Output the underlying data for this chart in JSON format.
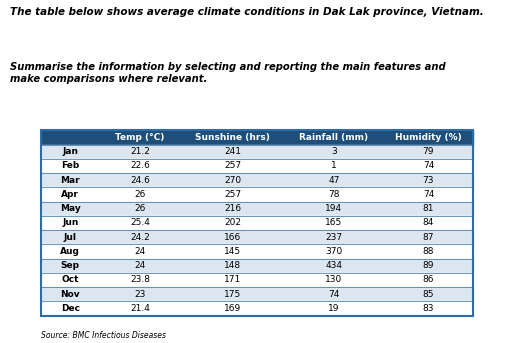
{
  "title_line1": "The table below shows average climate conditions in Dak Lak province, Vietnam.",
  "title_line2": "Summarise the information by selecting and reporting the main features and\nmake comparisons where relevant.",
  "source": "Source: BMC Infectious Diseases",
  "headers": [
    "",
    "Temp (°C)",
    "Sunshine (hrs)",
    "Rainfall (mm)",
    "Humidity (%)"
  ],
  "months": [
    "Jan",
    "Feb",
    "Mar",
    "Apr",
    "May",
    "Jun",
    "Jul",
    "Aug",
    "Sep",
    "Oct",
    "Nov",
    "Dec"
  ],
  "temp": [
    21.2,
    22.6,
    24.6,
    26,
    26,
    25.4,
    24.2,
    24,
    24,
    23.8,
    23,
    21.4
  ],
  "sunshine": [
    241,
    257,
    270,
    257,
    216,
    202,
    166,
    145,
    148,
    171,
    175,
    169
  ],
  "rainfall": [
    3,
    1,
    47,
    78,
    194,
    165,
    237,
    370,
    434,
    130,
    74,
    19
  ],
  "humidity": [
    79,
    74,
    73,
    74,
    81,
    84,
    87,
    88,
    89,
    86,
    85,
    83
  ],
  "header_bg": "#1f4e79",
  "header_fg": "#ffffff",
  "row_bg_even": "#dce6f1",
  "row_bg_odd": "#ffffff",
  "border_color": "#2e6da4",
  "text_color": "#000000",
  "table_outline": "#2e6da4"
}
